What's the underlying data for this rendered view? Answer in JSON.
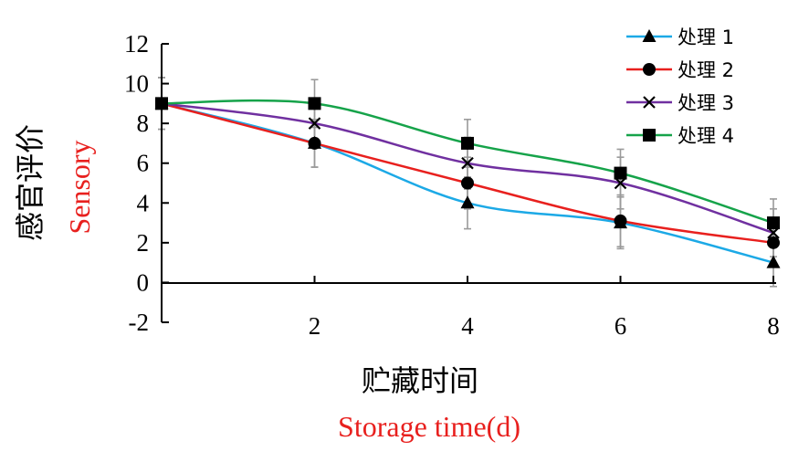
{
  "chart_data": {
    "type": "line",
    "x": [
      0,
      2,
      4,
      6,
      8
    ],
    "xticks": [
      2,
      4,
      6,
      8
    ],
    "yticks": [
      -2,
      0,
      2,
      4,
      6,
      8,
      10,
      12
    ],
    "ylim": [
      -2,
      12
    ],
    "xlim": [
      0,
      8
    ],
    "xlabel": "贮藏时间",
    "xlabel_en": "Storage time(d)",
    "ylabel": "感官评价",
    "ylabel_en": "Sensory",
    "legend_position": "top-right",
    "grid": false,
    "series": [
      {
        "name": "处理 1",
        "color": "#1ca9e6",
        "marker": "triangle",
        "values": [
          9,
          7,
          4,
          3,
          1
        ],
        "errors": [
          1.3,
          1.2,
          1.3,
          1.3,
          1.2
        ]
      },
      {
        "name": "处理 2",
        "color": "#e8201e",
        "marker": "circle",
        "values": [
          9,
          7,
          5,
          3.1,
          2
        ],
        "errors": [
          1.3,
          1.2,
          1.3,
          1.3,
          1.2
        ]
      },
      {
        "name": "处理 3",
        "color": "#7030a0",
        "marker": "cross",
        "values": [
          9,
          8,
          6,
          5,
          2.5
        ],
        "errors": [
          1.3,
          1.2,
          1.3,
          1.3,
          1.2
        ]
      },
      {
        "name": "处理 4",
        "color": "#16a34a",
        "marker": "square",
        "values": [
          9,
          9,
          7,
          5.5,
          3
        ],
        "errors": [
          1.3,
          1.2,
          1.2,
          1.2,
          1.2
        ]
      }
    ]
  }
}
